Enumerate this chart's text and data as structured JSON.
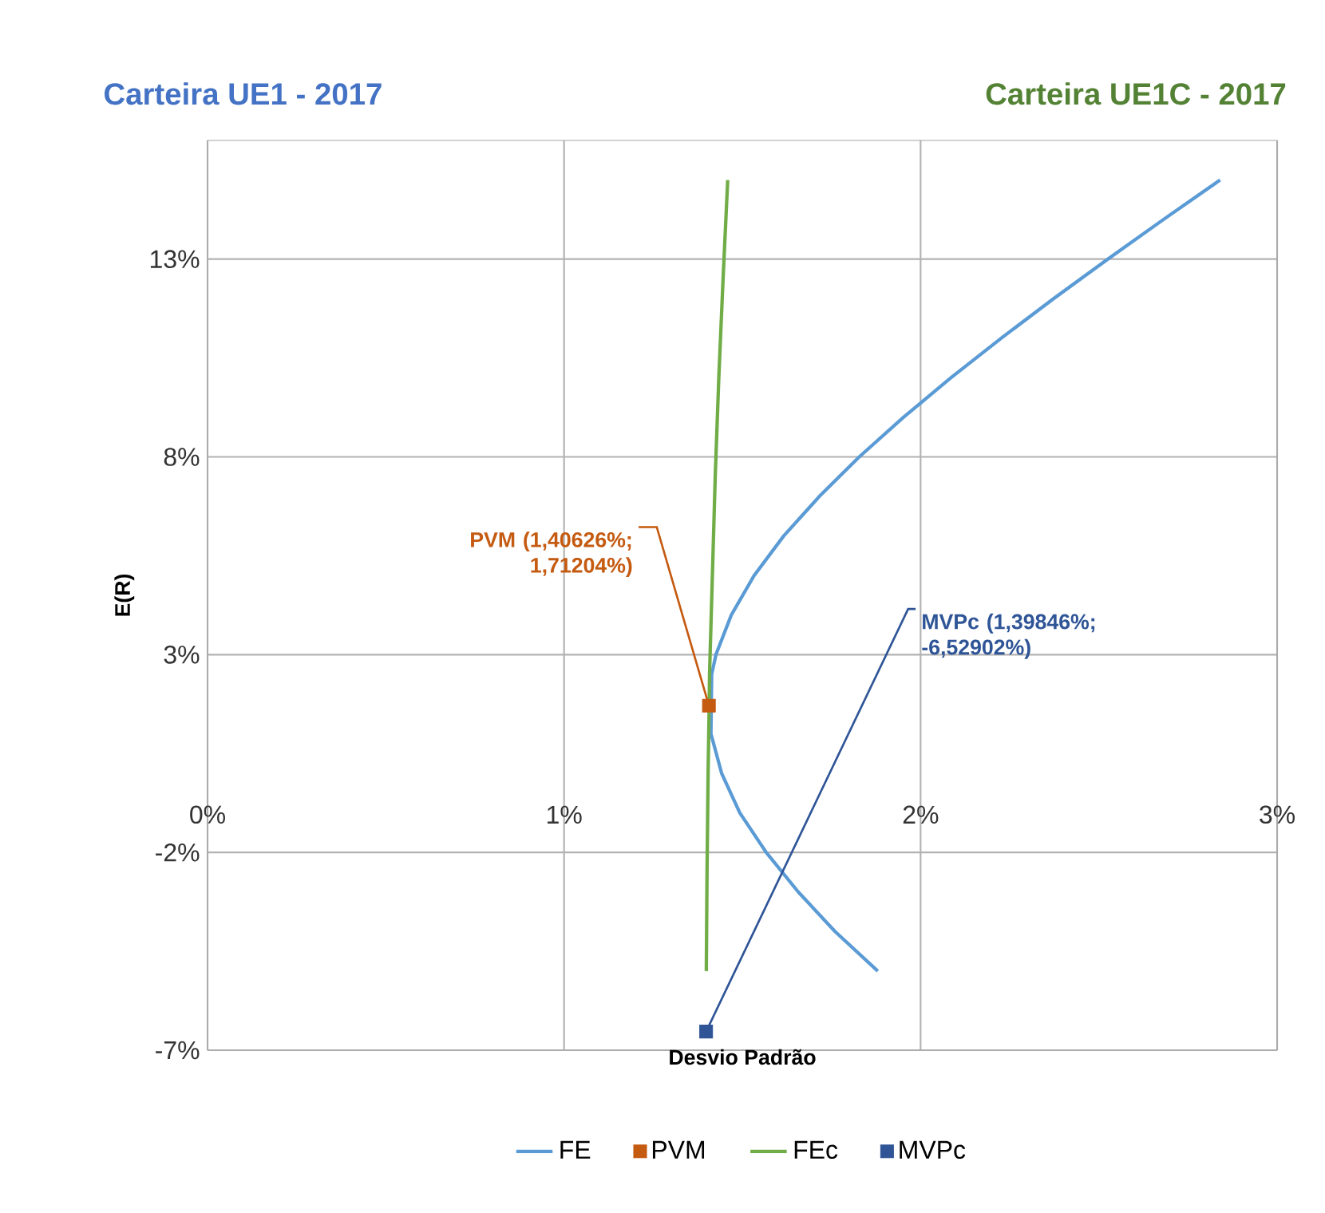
{
  "chart_data": {
    "type": "line",
    "title": "Carteira UE1 - 2017",
    "subtitle": "Carteira UE1C - 2017",
    "xlabel": "Desvio Padrão",
    "ylabel": "E(R)",
    "xlim": [
      0,
      3
    ],
    "ylim": [
      -7,
      16
    ],
    "xticks": [
      {
        "value": 0,
        "label": "0%"
      },
      {
        "value": 1,
        "label": "1%"
      },
      {
        "value": 2,
        "label": "2%"
      },
      {
        "value": 3,
        "label": "3%"
      }
    ],
    "yticks": [
      {
        "value": -7,
        "label": "-7%"
      },
      {
        "value": -2,
        "label": "-2%"
      },
      {
        "value": 3,
        "label": "3%"
      },
      {
        "value": 8,
        "label": "8%"
      },
      {
        "value": 13,
        "label": "13%"
      }
    ],
    "grid": true,
    "legend": "bottom",
    "series": [
      {
        "name": "FE",
        "type": "line",
        "color": "#5b9bd5",
        "x": [
          1.88,
          1.76,
          1.657,
          1.567,
          1.493,
          1.442,
          1.412,
          1.414,
          1.426,
          1.469,
          1.533,
          1.616,
          1.716,
          1.828,
          1.952,
          2.085,
          2.226,
          2.373,
          2.525,
          2.681,
          2.84
        ],
        "values": [
          -5,
          -4,
          -3,
          -2,
          -1,
          0,
          1,
          2.5,
          3,
          4,
          5,
          6,
          7,
          8,
          9,
          10,
          11,
          12,
          13,
          14,
          15
        ]
      },
      {
        "name": "PVM",
        "type": "scatter",
        "marker": "square",
        "color": "#c55a11",
        "x": [
          1.40626
        ],
        "values": [
          1.71204
        ]
      },
      {
        "name": "FEc",
        "type": "line",
        "color": "#70ad47",
        "x": [
          1.399,
          1.401,
          1.404,
          1.407,
          1.408,
          1.416,
          1.424,
          1.434,
          1.446,
          1.459
        ],
        "values": [
          -5,
          -2.5,
          0,
          1.71,
          2.5,
          5,
          7.5,
          10,
          12.5,
          15
        ]
      },
      {
        "name": "MVPc",
        "type": "scatter",
        "marker": "square",
        "color": "#2f5597",
        "x": [
          1.39846
        ],
        "values": [
          -6.52902
        ]
      }
    ],
    "annotations": [
      {
        "text": "PVM (1,40626%; 1,71204%)",
        "x": 1.40626,
        "y": 1.71204
      },
      {
        "text": "MVPc (1,39846%; -6,52902%)",
        "x": 1.39846,
        "y": -6.52902
      }
    ]
  }
}
